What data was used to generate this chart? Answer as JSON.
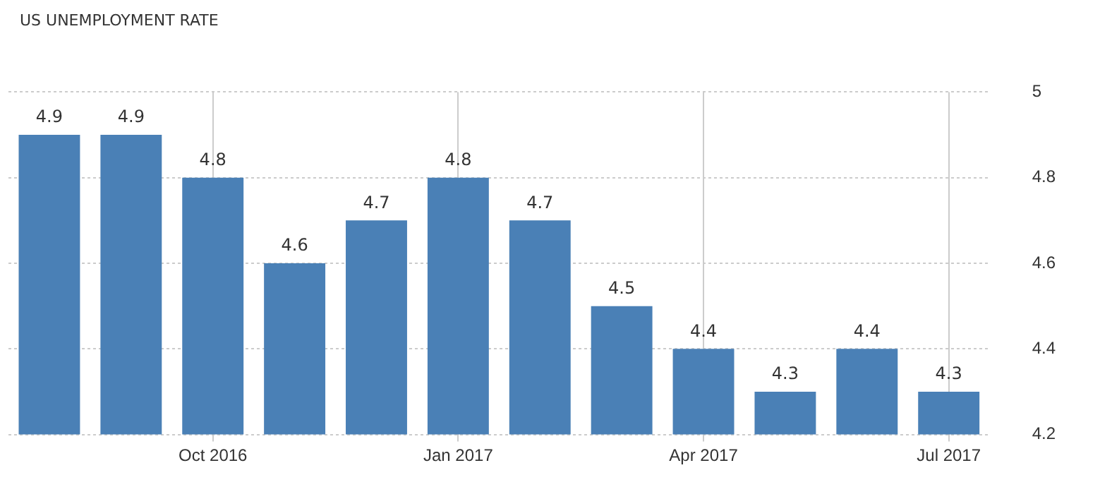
{
  "chart_data": {
    "type": "bar",
    "title": "US UNEMPLOYMENT RATE",
    "categories": [
      null,
      null,
      "Oct 2016",
      null,
      null,
      "Jan 2017",
      null,
      null,
      "Apr 2017",
      null,
      null,
      "Jul 2017"
    ],
    "values": [
      4.9,
      4.9,
      4.8,
      4.6,
      4.7,
      4.8,
      4.7,
      4.5,
      4.4,
      4.3,
      4.4,
      4.3
    ],
    "color": "#4a80b6",
    "ylim": [
      4.2,
      5
    ],
    "yticks": [
      4.2,
      4.4,
      4.6,
      4.8,
      5
    ],
    "grid": true,
    "data_labels": true
  }
}
